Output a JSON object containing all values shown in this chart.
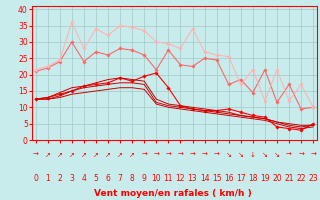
{
  "x": [
    0,
    1,
    2,
    3,
    4,
    5,
    6,
    7,
    8,
    9,
    10,
    11,
    12,
    13,
    14,
    15,
    16,
    17,
    18,
    19,
    20,
    21,
    22,
    23
  ],
  "series": [
    {
      "color": "#FF0000",
      "marker": "D",
      "markersize": 1.8,
      "linewidth": 0.8,
      "y": [
        12.5,
        13.0,
        14.0,
        15.0,
        16.5,
        17.0,
        17.5,
        19.0,
        18.0,
        19.5,
        20.5,
        16.0,
        10.5,
        9.5,
        9.0,
        9.0,
        9.5,
        8.5,
        7.5,
        7.0,
        4.0,
        3.5,
        3.0,
        5.0
      ]
    },
    {
      "color": "#CC0000",
      "marker": null,
      "markersize": 0,
      "linewidth": 0.7,
      "y": [
        12.5,
        12.5,
        13.0,
        14.0,
        14.5,
        15.0,
        15.5,
        16.0,
        16.0,
        15.5,
        11.0,
        10.0,
        9.5,
        9.0,
        8.5,
        8.0,
        7.5,
        7.0,
        6.5,
        6.0,
        5.0,
        4.0,
        3.5,
        4.0
      ]
    },
    {
      "color": "#CC0000",
      "marker": null,
      "markersize": 0,
      "linewidth": 0.7,
      "y": [
        12.5,
        12.5,
        13.5,
        15.0,
        16.0,
        16.5,
        17.0,
        17.5,
        17.5,
        17.0,
        11.5,
        10.5,
        10.0,
        9.5,
        9.0,
        8.5,
        8.0,
        7.5,
        7.0,
        6.5,
        5.5,
        4.5,
        4.0,
        4.5
      ]
    },
    {
      "color": "#CC0000",
      "marker": null,
      "markersize": 0,
      "linewidth": 0.7,
      "y": [
        12.5,
        13.0,
        14.5,
        16.0,
        16.5,
        17.5,
        18.5,
        19.0,
        18.5,
        18.0,
        12.5,
        11.0,
        10.5,
        10.0,
        9.5,
        9.0,
        8.5,
        7.5,
        7.0,
        6.5,
        5.5,
        5.0,
        4.5,
        4.5
      ]
    },
    {
      "color": "#FF6666",
      "marker": "D",
      "markersize": 1.8,
      "linewidth": 0.8,
      "y": [
        21.0,
        22.0,
        24.0,
        30.0,
        24.0,
        27.0,
        26.0,
        28.0,
        27.5,
        26.0,
        21.5,
        27.5,
        23.0,
        22.5,
        25.0,
        24.5,
        17.0,
        18.5,
        14.5,
        21.5,
        11.5,
        17.0,
        9.5,
        10.0
      ]
    },
    {
      "color": "#FFB3B3",
      "marker": "D",
      "markersize": 1.8,
      "linewidth": 0.8,
      "y": [
        21.5,
        22.5,
        24.5,
        36.0,
        28.0,
        34.0,
        32.0,
        35.0,
        34.5,
        33.5,
        30.0,
        29.5,
        28.0,
        34.0,
        27.0,
        26.0,
        25.5,
        17.0,
        21.5,
        12.0,
        21.5,
        12.0,
        17.0,
        10.0
      ]
    }
  ],
  "xlabel": "Vent moyen/en rafales ( km/h )",
  "yticks": [
    0,
    5,
    10,
    15,
    20,
    25,
    30,
    35,
    40
  ],
  "xticks": [
    0,
    1,
    2,
    3,
    4,
    5,
    6,
    7,
    8,
    9,
    10,
    11,
    12,
    13,
    14,
    15,
    16,
    17,
    18,
    19,
    20,
    21,
    22,
    23
  ],
  "xlim": [
    -0.3,
    23.3
  ],
  "ylim": [
    0,
    41
  ],
  "bg_color": "#C8ECEC",
  "grid_color": "#A0C8C8",
  "arrows": [
    "→",
    "↗",
    "↗",
    "↗",
    "↗",
    "↗",
    "↗",
    "↗",
    "↗",
    "→",
    "→",
    "→",
    "→",
    "→",
    "→",
    "→",
    "↘",
    "↘",
    "↓",
    "↘",
    "↘",
    "→",
    "→",
    "→"
  ],
  "xlabel_fontsize": 6.5,
  "tick_fontsize": 5.5,
  "arrow_fontsize": 5.0
}
